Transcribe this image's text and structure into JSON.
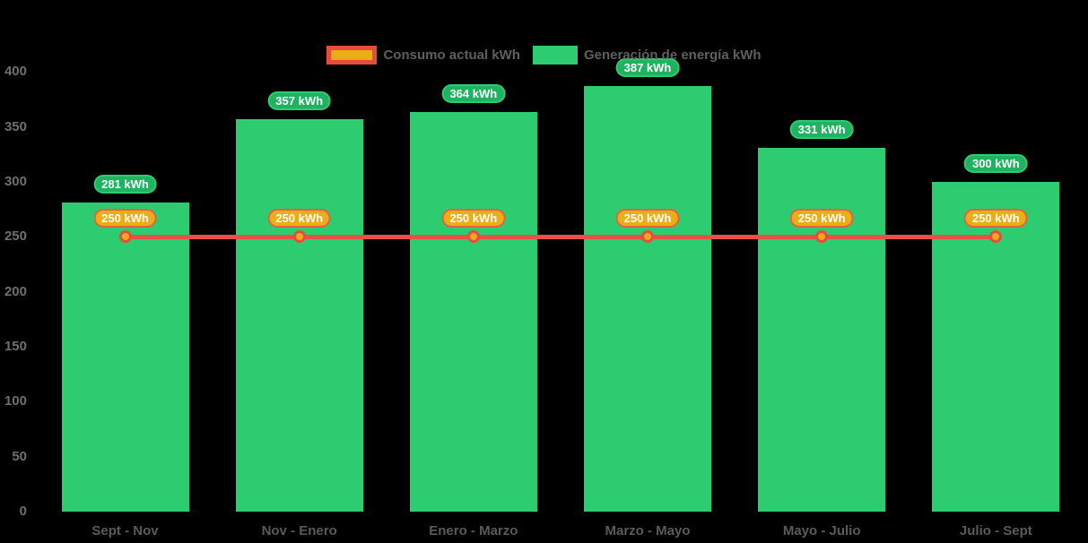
{
  "legend": {
    "items": [
      {
        "label": "Consumo actual kWh",
        "type": "line"
      },
      {
        "label": "Generación de energía kWh",
        "type": "bar"
      }
    ]
  },
  "chart_data": {
    "type": "bar",
    "title": "",
    "categories": [
      "Sept - Nov",
      "Nov - Enero",
      "Enero - Marzo",
      "Marzo - Mayo",
      "Mayo - Julio",
      "Julio - Sept"
    ],
    "series": [
      {
        "name": "Consumo actual kWh",
        "type": "line",
        "values": [
          250,
          250,
          250,
          250,
          250,
          250
        ],
        "point_labels": [
          "250 kWh",
          "250 kWh",
          "250 kWh",
          "250 kWh",
          "250 kWh",
          "250 kWh"
        ]
      },
      {
        "name": "Generación de energía kWh",
        "type": "bar",
        "values": [
          281,
          357,
          364,
          387,
          331,
          300
        ],
        "point_labels": [
          "281 kWh",
          "357 kWh",
          "364 kWh",
          "387 kWh",
          "331 kWh",
          "300 kWh"
        ]
      }
    ],
    "xlabel": "",
    "ylabel": "",
    "ylim": [
      0,
      400
    ],
    "yticks": [
      0,
      50,
      100,
      150,
      200,
      250,
      300,
      350,
      400
    ],
    "grid": false,
    "legend_position": "top",
    "background": "#000000"
  },
  "colors": {
    "bar_fill": "#2ecc71",
    "bar_label_bg": "#1fb261",
    "bar_label_border": "#2ecc71",
    "line": "#ea5045",
    "line_label_bg": "#ecae17",
    "line_label_border": "#e8603c",
    "marker_fill": "#f0a81c",
    "marker_border": "#e74c3c",
    "legend_line_swatch_fill": "#ecae17",
    "legend_line_swatch_border": "#e74c3c",
    "legend_bar_swatch_fill": "#2ecc71",
    "label_text": "#ffffff",
    "ytick_text": "#6f6f6f",
    "xtick_text": "#5a5a5a",
    "legend_text": "#5f5f5f"
  }
}
